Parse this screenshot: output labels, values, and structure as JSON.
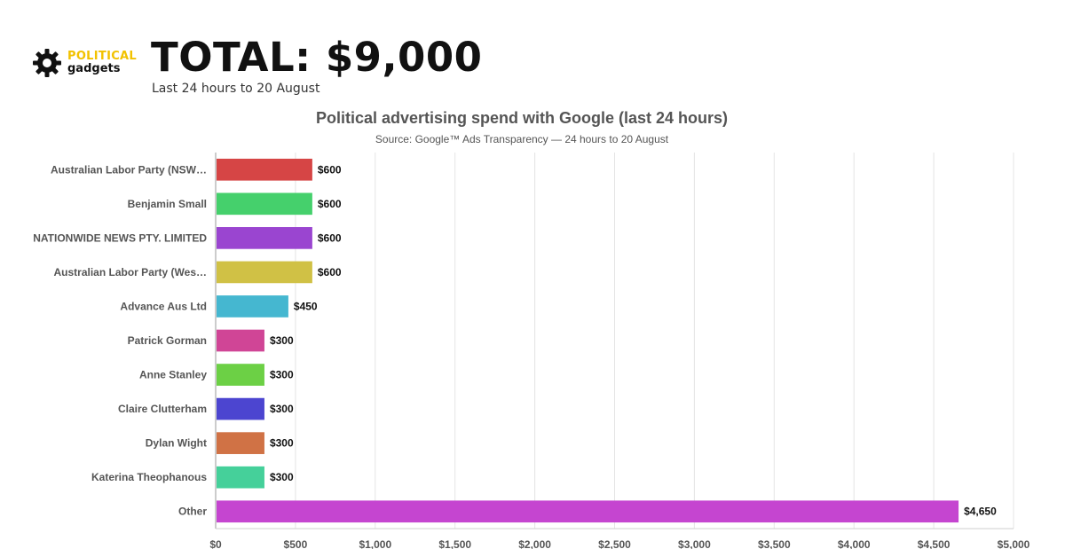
{
  "header": {
    "logo_line1": "POLITICAL",
    "logo_line2": "gadgets",
    "headline": "TOTAL: $9,000",
    "subheadline": "Last 24 hours to 20 August",
    "logo_icon": "gear-icon"
  },
  "chart_data": {
    "type": "bar",
    "orientation": "horizontal",
    "title": "Political advertising spend with Google (last 24 hours)",
    "subtitle": "Source: Google™ Ads Transparency — 24 hours to 20 August",
    "categories": [
      "Australian Labor Party (NSW…",
      "Benjamin Small",
      "NATIONWIDE NEWS PTY. LIMITED",
      "Australian Labor Party (Wes…",
      "Advance Aus Ltd",
      "Patrick Gorman",
      "Anne Stanley",
      "Claire Clutterham",
      "Dylan Wight",
      "Katerina Theophanous",
      "Other"
    ],
    "values": [
      600,
      600,
      600,
      600,
      450,
      300,
      300,
      300,
      300,
      300,
      4650
    ],
    "value_labels": [
      "$600",
      "$600",
      "$600",
      "$600",
      "$450",
      "$300",
      "$300",
      "$300",
      "$300",
      "$300",
      "$4,650"
    ],
    "colors": [
      "#d64545",
      "#45d06c",
      "#9a45d0",
      "#d0c145",
      "#45b7d0",
      "#d04596",
      "#6cd045",
      "#4c45d0",
      "#d07245",
      "#45d09a",
      "#c545d0"
    ],
    "x_ticks": [
      0,
      500,
      1000,
      1500,
      2000,
      2500,
      3000,
      3500,
      4000,
      4500,
      5000
    ],
    "x_tick_labels": [
      "$0",
      "$500",
      "$1,000",
      "$1,500",
      "$2,000",
      "$2,500",
      "$3,000",
      "$3,500",
      "$4,000",
      "$4,500",
      "$5,000"
    ],
    "xlim": [
      0,
      5000
    ],
    "xlabel": "",
    "ylabel": "",
    "grid": true,
    "legend": "none"
  }
}
